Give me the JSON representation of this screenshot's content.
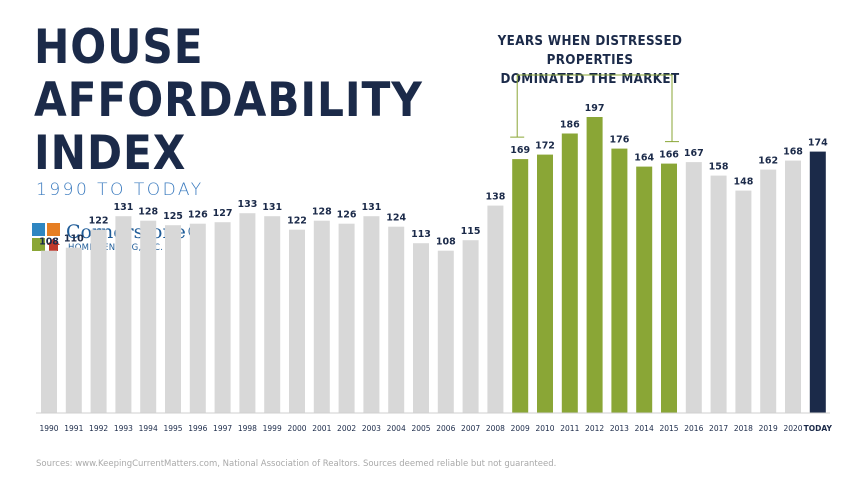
{
  "title_lines": [
    "HOUSE",
    "AFFORDABILITY",
    "INDEX"
  ],
  "subtitle": "1990 TO TODAY",
  "logo": {
    "name": "Cornerstone®",
    "tagline": "HOME LENDING, INC."
  },
  "annotation": {
    "line1": "YEARS WHEN DISTRESSED PROPERTIES",
    "line2": "DOMINATED THE MARKET"
  },
  "footer": "Sources: www.KeepingCurrentMatters.com, National Association of Realtors. Sources deemed reliable but not guaranteed.",
  "colors": {
    "normal": "#d8d8d8",
    "distressed": "#8aa636",
    "today": "#1b2a49",
    "bracket": "#8aa636"
  },
  "chart_data": {
    "type": "bar",
    "title": "HOUSE AFFORDABILITY INDEX",
    "subtitle": "1990 TO TODAY",
    "xlabel": "",
    "ylabel": "",
    "ylim": [
      0,
      200
    ],
    "grid": false,
    "categories": [
      "1990",
      "1991",
      "1992",
      "1993",
      "1994",
      "1995",
      "1996",
      "1997",
      "1998",
      "1999",
      "2000",
      "2001",
      "2002",
      "2003",
      "2004",
      "2005",
      "2006",
      "2007",
      "2008",
      "2009",
      "2010",
      "2011",
      "2012",
      "2013",
      "2014",
      "2015",
      "2016",
      "2017",
      "2018",
      "2019",
      "2020",
      "TODAY"
    ],
    "values": [
      108,
      110,
      122,
      131,
      128,
      125,
      126,
      127,
      133,
      131,
      122,
      128,
      126,
      131,
      124,
      113,
      108,
      115,
      138,
      169,
      172,
      186,
      197,
      176,
      164,
      166,
      167,
      158,
      148,
      162,
      168,
      174
    ],
    "groups": [
      "normal",
      "normal",
      "normal",
      "normal",
      "normal",
      "normal",
      "normal",
      "normal",
      "normal",
      "normal",
      "normal",
      "normal",
      "normal",
      "normal",
      "normal",
      "normal",
      "normal",
      "normal",
      "normal",
      "distressed",
      "distressed",
      "distressed",
      "distressed",
      "distressed",
      "distressed",
      "distressed",
      "normal",
      "normal",
      "normal",
      "normal",
      "normal",
      "today"
    ],
    "annotations": [
      {
        "text": "YEARS WHEN DISTRESSED PROPERTIES DOMINATED THE MARKET",
        "from": "2009",
        "to": "2015"
      }
    ]
  }
}
